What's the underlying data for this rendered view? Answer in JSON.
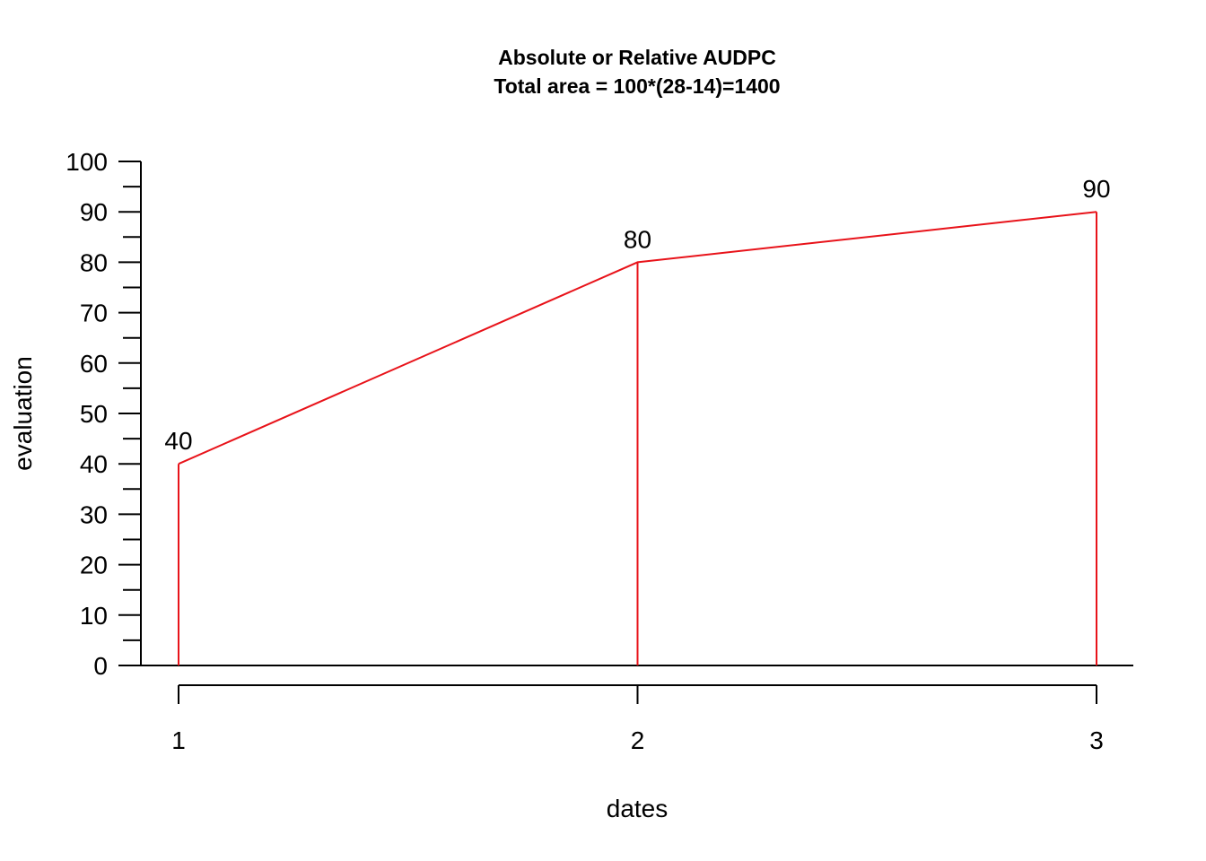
{
  "chart_data": {
    "type": "line",
    "title": "Absolute or Relative AUDPC",
    "subtitle": "Total area = 100*(28-14)=1400",
    "xlabel": "dates",
    "ylabel": "evaluation",
    "x": [
      1,
      2,
      3
    ],
    "x_tick_labels": [
      "1",
      "2",
      "3"
    ],
    "values": [
      40,
      80,
      90
    ],
    "data_labels": [
      "40",
      "80",
      "90"
    ],
    "ylim": [
      0,
      100
    ],
    "y_tick_labels": [
      "0",
      "10",
      "20",
      "30",
      "40",
      "50",
      "60",
      "70",
      "80",
      "90",
      "100"
    ],
    "y_minor_ticks": [
      5,
      15,
      25,
      35,
      45,
      55,
      65,
      75,
      85,
      95
    ],
    "drop_lines": true,
    "grid": false,
    "legend": "none",
    "colors": {
      "series": "#e8131a",
      "axis": "#000000",
      "text": "#000000",
      "background": "#ffffff"
    }
  }
}
